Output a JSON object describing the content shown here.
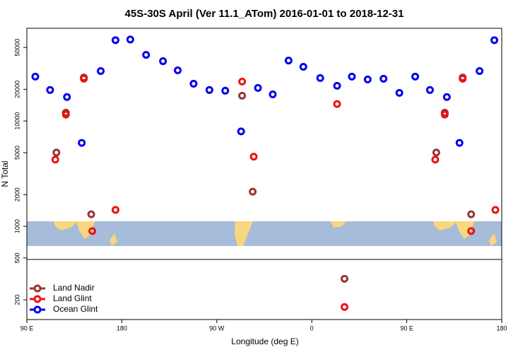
{
  "chart_data": {
    "type": "scatter",
    "title": "45S-30S April (Ver 11.1_ATom)   2016-01-01 to 2018-12-31",
    "x_label": "Longitude (deg E)",
    "y_label": "N Total",
    "log_y": true,
    "xlim": [
      90,
      540
    ],
    "xticks": [
      {
        "value": 90,
        "label": "90 E"
      },
      {
        "value": 180,
        "label": "180"
      },
      {
        "value": 270,
        "label": "90 W"
      },
      {
        "value": 360,
        "label": "0"
      },
      {
        "value": 450,
        "label": "90 E"
      },
      {
        "value": 540,
        "label": "180"
      }
    ],
    "ylim": [
      130,
      76000
    ],
    "yticks": [
      200,
      500,
      1000,
      2000,
      5000,
      10000,
      20000,
      50000
    ],
    "legend_position": "bottom-left",
    "series": [
      {
        "name": "Land Nadir",
        "color": "#993333",
        "x": [
          118,
          127,
          144,
          151,
          294,
          304,
          391,
          478,
          486,
          503,
          511
        ],
        "values": [
          5020,
          12000,
          25900,
          1300,
          17400,
          2130,
          317,
          5020,
          12000,
          25900,
          1300
        ]
      },
      {
        "name": "Land Glint",
        "color": "#ee1111",
        "x": [
          117,
          127,
          144,
          152,
          174,
          294,
          305,
          384,
          391,
          477,
          486,
          503,
          511,
          534
        ],
        "values": [
          4300,
          11500,
          25200,
          900,
          1430,
          23700,
          4580,
          14500,
          171,
          4300,
          11500,
          25200,
          900,
          1430
        ]
      },
      {
        "name": "Ocean Glint",
        "color": "#0000ee",
        "x": [
          98,
          112,
          128,
          142,
          160,
          174,
          188,
          203,
          219,
          233,
          248,
          263,
          278,
          293,
          309,
          323,
          338,
          352,
          368,
          384,
          398,
          413,
          428,
          443,
          458,
          472,
          488,
          500,
          519,
          533
        ],
        "values": [
          26400,
          19700,
          16900,
          6200,
          29800,
          58600,
          59400,
          42500,
          37000,
          30300,
          22600,
          19700,
          19400,
          7960,
          20600,
          17900,
          37500,
          32700,
          25600,
          21600,
          26400,
          24800,
          25200,
          18500,
          26400,
          19700,
          16900,
          6200,
          29800,
          58600
        ]
      }
    ]
  }
}
